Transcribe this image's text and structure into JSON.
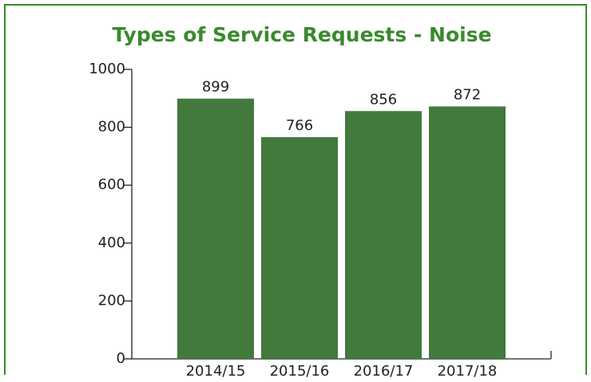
{
  "chart_data": {
    "type": "bar",
    "title": "Types of Service Requests - Noise",
    "categories": [
      "2014/15",
      "2015/16",
      "2016/17",
      "2017/18"
    ],
    "values": [
      899,
      766,
      856,
      872
    ],
    "color": "#417a3c",
    "ylim": [
      0,
      1000
    ],
    "yticks": [
      0,
      200,
      400,
      600,
      800,
      1000
    ],
    "grid": false
  }
}
